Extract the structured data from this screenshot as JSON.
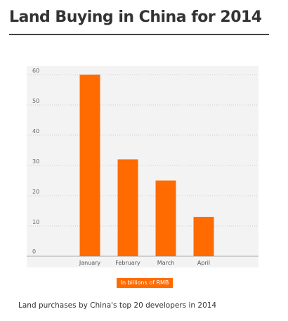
{
  "chart_data": {
    "type": "bar",
    "title": "Land Buying in China for 2014",
    "categories": [
      "January",
      "February",
      "March",
      "April"
    ],
    "values": [
      60,
      32,
      25,
      13
    ],
    "ylim": [
      0,
      60
    ],
    "yticks": [
      0,
      10,
      20,
      30,
      40,
      50,
      60
    ],
    "grid": true,
    "unit_label": "In billions of RMB",
    "caption": "Land purchases by China's top 20 developers in 2014",
    "colors": {
      "bar": "#ff6b00",
      "plot_background": "#f3f3f3",
      "grid": "#cccccc"
    }
  }
}
